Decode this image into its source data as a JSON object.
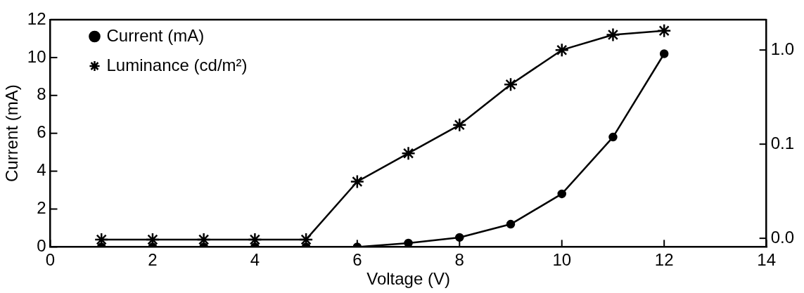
{
  "chart_data": {
    "type": "line",
    "xlabel": "Voltage (V)",
    "ylabel": "Current (mA)",
    "x": [
      1,
      2,
      3,
      4,
      5,
      6,
      7,
      8,
      9,
      10,
      11,
      12
    ],
    "series": [
      {
        "name": "Current (mA)",
        "color": "#000000",
        "marker": "circle",
        "values": [
          0,
          0,
          0,
          0,
          0,
          0,
          0.2,
          0.5,
          1.2,
          2.8,
          5.8,
          10.2
        ]
      },
      {
        "name": "Luminance (cd/m²)",
        "color": "#000000",
        "marker": "cross",
        "axis": "y2",
        "values": [
          0.0097,
          0.0097,
          0.0097,
          0.0097,
          0.0097,
          0.04,
          0.08,
          0.16,
          0.43,
          1.0,
          1.45,
          1.6
        ]
      }
    ],
    "xlim": [
      0,
      14
    ],
    "xticks": [
      0,
      2,
      4,
      6,
      8,
      10,
      12,
      14
    ],
    "ylim": [
      0,
      12
    ],
    "yticks": [
      0,
      2,
      4,
      6,
      8,
      10,
      12
    ],
    "y2lim": [
      0.0081,
      2.1
    ],
    "y2ticks": [
      {
        "value": 0.01,
        "label": "0.0"
      },
      {
        "value": 0.1,
        "label": "0.1"
      },
      {
        "value": 1,
        "label": "1.0"
      }
    ],
    "log": "y2",
    "grid": false,
    "legend": "top left",
    "line_style": "solid"
  }
}
